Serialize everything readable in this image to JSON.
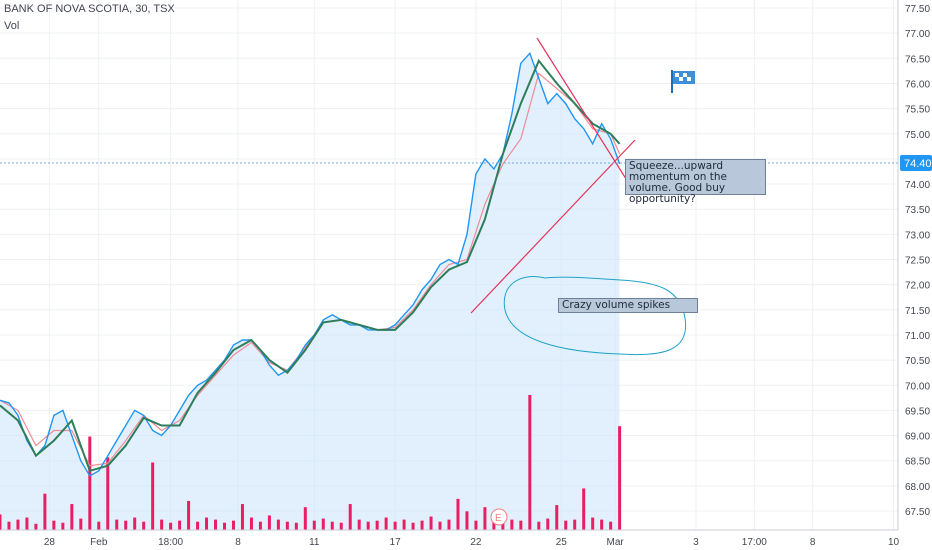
{
  "header": {
    "symbol_line": "BANK OF NOVA SCOTIA, 30, TSX",
    "volume_label": "Vol"
  },
  "annotations": {
    "squeeze_note": "Squeeze...upward momentum on the volume. Good buy opportunity?",
    "volume_note": "Crazy volume spikes"
  },
  "price_badge": "74.40",
  "volume_marker": "E",
  "colors": {
    "price_line": "#2196f3",
    "area_fill": "#cfe6fb",
    "ma_fast": "#ef8a96",
    "ma_slow": "#2e7d5b",
    "volume": "#e91e63",
    "trendline": "#e6325a",
    "badge_bg": "#2196f3",
    "note_bg": "#b8c7d9",
    "circle": "#1fa3c8"
  },
  "chart_data": {
    "type": "line",
    "y_axis": {
      "range": [
        67.25,
        77.6
      ],
      "ticks": [
        "77.50",
        "77.00",
        "76.50",
        "76.00",
        "75.50",
        "75.00",
        "74.50",
        "74.00",
        "73.50",
        "73.00",
        "72.50",
        "72.00",
        "71.50",
        "71.00",
        "70.50",
        "70.00",
        "69.50",
        "69.00",
        "68.50",
        "68.00",
        "67.50"
      ]
    },
    "x_axis": {
      "range": [
        0,
        100
      ],
      "ticks": [
        {
          "label": "28",
          "x": 5.5
        },
        {
          "label": "Feb",
          "x": 11
        },
        {
          "label": "18:00",
          "x": 19
        },
        {
          "label": "8",
          "x": 26.5
        },
        {
          "label": "11",
          "x": 35
        },
        {
          "label": "17",
          "x": 44
        },
        {
          "label": "22",
          "x": 53
        },
        {
          "label": "25",
          "x": 62.5
        },
        {
          "label": "Mar",
          "x": 68.5
        },
        {
          "label": "3",
          "x": 77.5
        },
        {
          "label": "17:00",
          "x": 84
        },
        {
          "label": "8",
          "x": 90.5
        },
        {
          "label": "10",
          "x": 99.5
        }
      ]
    },
    "grid": true,
    "last_price": 74.4,
    "series": [
      {
        "role": "price",
        "x": [
          0,
          1,
          2,
          3,
          4,
          5,
          6,
          7,
          8,
          9,
          10,
          11,
          12,
          13,
          14,
          15,
          16,
          17,
          18,
          19,
          20,
          21,
          22,
          23,
          24,
          25,
          26,
          27,
          28,
          29,
          30,
          31,
          32,
          33,
          34,
          35,
          36,
          37,
          38,
          39,
          40,
          41,
          42,
          43,
          44,
          45,
          46,
          47,
          48,
          49,
          50,
          51,
          52,
          53,
          54,
          55,
          56,
          57,
          58,
          59,
          60,
          61,
          62,
          63,
          64,
          65,
          66,
          67,
          68,
          69
        ],
        "y": [
          69.7,
          69.65,
          69.4,
          68.9,
          68.6,
          68.8,
          69.4,
          69.5,
          69.0,
          68.5,
          68.2,
          68.3,
          68.6,
          68.9,
          69.2,
          69.5,
          69.4,
          69.1,
          69.0,
          69.2,
          69.5,
          69.8,
          70.0,
          70.1,
          70.3,
          70.5,
          70.8,
          70.9,
          70.9,
          70.7,
          70.4,
          70.2,
          70.3,
          70.5,
          70.8,
          71.0,
          71.3,
          71.4,
          71.3,
          71.2,
          71.2,
          71.1,
          71.1,
          71.1,
          71.2,
          71.4,
          71.6,
          71.9,
          72.1,
          72.4,
          72.5,
          72.4,
          73.0,
          74.2,
          74.5,
          74.3,
          74.6,
          75.4,
          76.4,
          76.6,
          76.1,
          75.6,
          75.8,
          75.6,
          75.3,
          75.1,
          74.8,
          75.2,
          74.9,
          74.4
        ]
      },
      {
        "role": "ma-fast",
        "x": [
          0,
          2,
          4,
          6,
          8,
          10,
          12,
          14,
          16,
          18,
          20,
          22,
          24,
          26,
          28,
          30,
          32,
          34,
          36,
          38,
          40,
          42,
          44,
          46,
          48,
          50,
          52,
          54,
          56,
          58,
          60,
          62,
          64,
          66,
          68,
          69
        ],
        "y": [
          69.7,
          69.5,
          68.8,
          69.1,
          69.1,
          68.4,
          68.45,
          68.9,
          69.4,
          69.1,
          69.3,
          69.8,
          70.2,
          70.6,
          70.85,
          70.45,
          70.3,
          70.75,
          71.25,
          71.3,
          71.2,
          71.1,
          71.15,
          71.5,
          72.0,
          72.4,
          72.5,
          73.6,
          74.4,
          74.9,
          76.2,
          75.9,
          75.6,
          75.1,
          75.0,
          74.6
        ]
      },
      {
        "role": "ma-slow",
        "x": [
          0,
          2,
          4,
          6,
          8,
          10,
          12,
          14,
          16,
          18,
          20,
          22,
          24,
          26,
          28,
          30,
          32,
          34,
          36,
          38,
          40,
          42,
          44,
          46,
          48,
          50,
          52,
          54,
          56,
          58,
          60,
          62,
          64,
          66,
          68,
          69
        ],
        "y": [
          69.6,
          69.3,
          68.6,
          68.9,
          69.3,
          68.3,
          68.4,
          68.8,
          69.35,
          69.2,
          69.2,
          69.85,
          70.25,
          70.7,
          70.9,
          70.5,
          70.25,
          70.7,
          71.25,
          71.3,
          71.2,
          71.1,
          71.1,
          71.45,
          71.95,
          72.3,
          72.45,
          73.3,
          74.6,
          75.6,
          76.45,
          76.0,
          75.6,
          75.2,
          75.0,
          74.8
        ]
      }
    ],
    "volume": {
      "x": [
        0,
        1,
        2,
        3,
        4,
        5,
        6,
        7,
        8,
        9,
        10,
        11,
        12,
        13,
        14,
        15,
        16,
        17,
        18,
        19,
        20,
        21,
        22,
        23,
        24,
        25,
        26,
        27,
        28,
        29,
        30,
        31,
        32,
        33,
        34,
        35,
        36,
        37,
        38,
        39,
        40,
        41,
        42,
        43,
        44,
        45,
        46,
        47,
        48,
        49,
        50,
        51,
        52,
        53,
        54,
        55,
        56,
        57,
        58,
        59,
        60,
        61,
        62,
        63,
        64,
        65,
        66,
        67,
        68,
        69
      ],
      "y": [
        15,
        8,
        10,
        12,
        6,
        35,
        9,
        7,
        25,
        11,
        90,
        8,
        70,
        10,
        9,
        12,
        8,
        65,
        10,
        7,
        9,
        28,
        8,
        12,
        10,
        7,
        9,
        25,
        12,
        8,
        14,
        10,
        8,
        7,
        22,
        9,
        11,
        8,
        7,
        25,
        10,
        8,
        9,
        12,
        8,
        10,
        7,
        9,
        13,
        8,
        10,
        30,
        18,
        9,
        22,
        8,
        12,
        10,
        9,
        130,
        8,
        11,
        24,
        9,
        10,
        40,
        12,
        10,
        8,
        100
      ]
    }
  }
}
